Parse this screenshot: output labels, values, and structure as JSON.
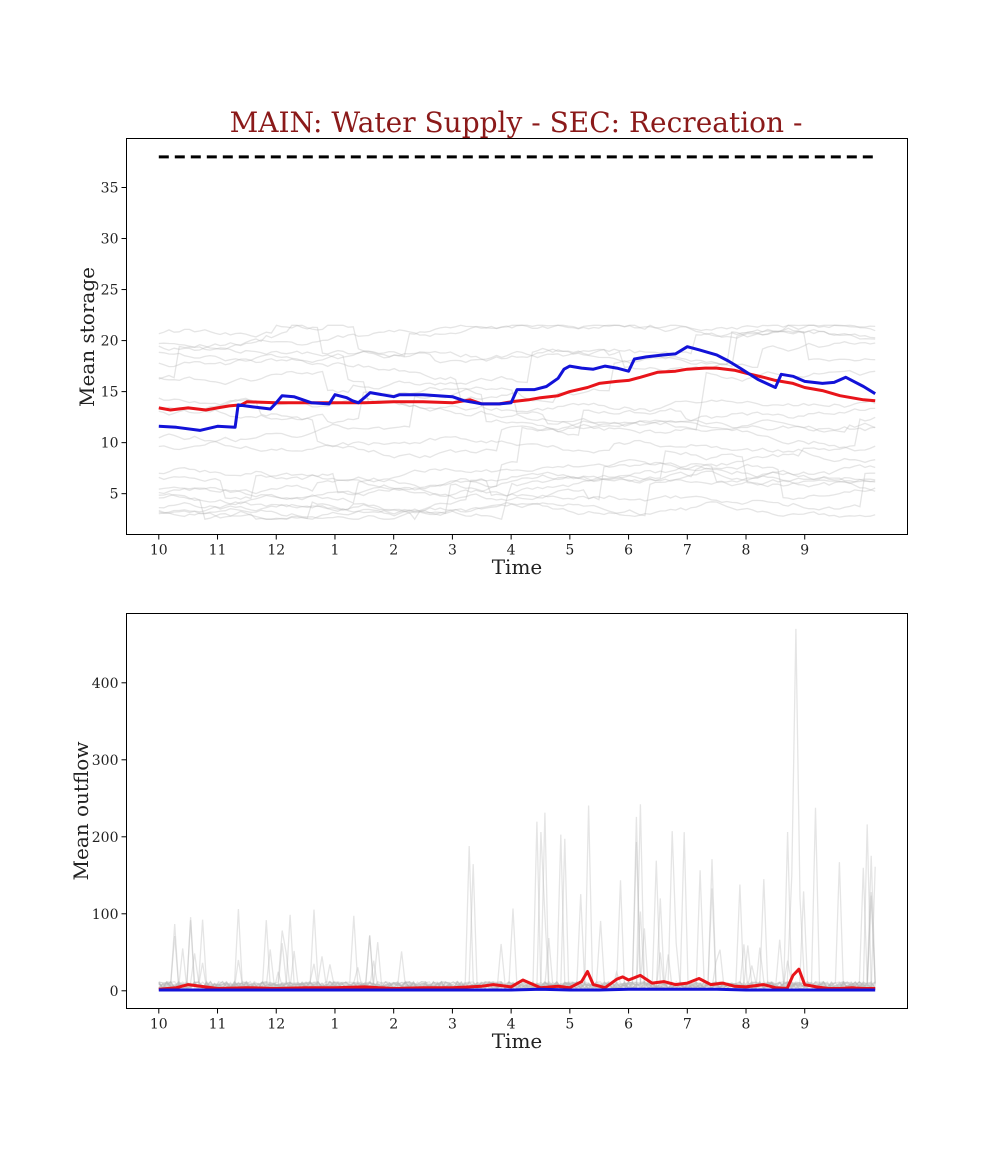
{
  "title": "MAIN: Water Supply - SEC: Recreation -",
  "colors": {
    "title": "#8b1a1a",
    "red_series": "#e8141a",
    "blue_series": "#1212d8",
    "gray_traces": "#b4b4b4",
    "reference": "#000000"
  },
  "chart_data": [
    {
      "type": "line",
      "xlabel": "Time",
      "ylabel": "Mean storage",
      "x_tick_labels": [
        "10",
        "11",
        "12",
        "1",
        "2",
        "3",
        "4",
        "5",
        "6",
        "7",
        "8",
        "9"
      ],
      "x_tick_positions": [
        0,
        1,
        2,
        3,
        4,
        5,
        6,
        7,
        8,
        9,
        10,
        11
      ],
      "xlim": [
        -0.55,
        12.75
      ],
      "y_ticks": [
        5,
        10,
        15,
        20,
        25,
        30,
        35
      ],
      "ylim": [
        1,
        39.8
      ],
      "grid": false,
      "reference_line": {
        "y": 38,
        "x_range": [
          0,
          12.2
        ],
        "style": "dashed"
      },
      "series": [
        {
          "role": "highlight",
          "color": "red",
          "x": [
            0,
            0.2,
            0.5,
            0.8,
            1.0,
            1.2,
            1.4,
            1.5,
            2.0,
            2.5,
            3.0,
            3.5,
            4.0,
            4.5,
            5.0,
            5.3,
            5.5,
            5.8,
            6.0,
            6.3,
            6.5,
            6.8,
            7.0,
            7.3,
            7.5,
            7.8,
            8.0,
            8.2,
            8.5,
            8.8,
            9.0,
            9.3,
            9.5,
            9.8,
            10.0,
            10.3,
            10.5,
            10.8,
            11.0,
            11.3,
            11.6,
            12.0,
            12.2
          ],
          "y": [
            13.4,
            13.2,
            13.4,
            13.2,
            13.4,
            13.6,
            13.7,
            14.0,
            13.9,
            13.9,
            13.9,
            13.9,
            14.0,
            14.0,
            13.9,
            14.2,
            13.8,
            13.8,
            14.0,
            14.2,
            14.4,
            14.6,
            15.0,
            15.4,
            15.8,
            16.0,
            16.1,
            16.4,
            16.9,
            17.0,
            17.2,
            17.3,
            17.3,
            17.1,
            16.8,
            16.4,
            16.1,
            15.8,
            15.4,
            15.1,
            14.6,
            14.2,
            14.1
          ]
        },
        {
          "role": "highlight",
          "color": "blue",
          "x": [
            0,
            0.3,
            0.7,
            1.0,
            1.3,
            1.35,
            1.6,
            1.9,
            2.0,
            2.1,
            2.3,
            2.6,
            2.9,
            3.0,
            3.2,
            3.3,
            3.4,
            3.6,
            3.9,
            4.0,
            4.1,
            4.5,
            5.0,
            5.2,
            5.4,
            5.5,
            5.8,
            6.0,
            6.1,
            6.4,
            6.6,
            6.8,
            6.9,
            7.0,
            7.2,
            7.4,
            7.6,
            7.8,
            8.0,
            8.1,
            8.3,
            8.6,
            8.8,
            9.0,
            9.2,
            9.5,
            9.7,
            9.9,
            10.2,
            10.5,
            10.6,
            10.8,
            11.0,
            11.3,
            11.5,
            11.7,
            12.0,
            12.2
          ],
          "y": [
            11.6,
            11.5,
            11.2,
            11.6,
            11.5,
            13.7,
            13.5,
            13.3,
            13.9,
            14.6,
            14.5,
            13.9,
            13.8,
            14.7,
            14.4,
            14.1,
            13.9,
            14.9,
            14.6,
            14.5,
            14.7,
            14.7,
            14.5,
            14.1,
            13.9,
            13.8,
            13.8,
            13.9,
            15.2,
            15.2,
            15.5,
            16.3,
            17.2,
            17.5,
            17.3,
            17.2,
            17.5,
            17.3,
            17.0,
            18.2,
            18.4,
            18.6,
            18.7,
            19.4,
            19.1,
            18.6,
            18.0,
            17.3,
            16.2,
            15.4,
            16.7,
            16.5,
            16.0,
            15.8,
            15.9,
            16.4,
            15.5,
            14.8
          ]
        }
      ]
    },
    {
      "type": "line",
      "xlabel": "Time",
      "ylabel": "Mean outflow",
      "x_tick_labels": [
        "10",
        "11",
        "12",
        "1",
        "2",
        "3",
        "4",
        "5",
        "6",
        "7",
        "8",
        "9"
      ],
      "x_tick_positions": [
        0,
        1,
        2,
        3,
        4,
        5,
        6,
        7,
        8,
        9,
        10,
        11
      ],
      "xlim": [
        -0.55,
        12.75
      ],
      "y_ticks": [
        0,
        100,
        200,
        300,
        400
      ],
      "ylim": [
        -23,
        490
      ],
      "grid": false,
      "series": [
        {
          "role": "highlight",
          "color": "red",
          "x": [
            0,
            0.3,
            0.5,
            1.0,
            1.5,
            2.0,
            2.5,
            3.0,
            3.5,
            4.0,
            4.5,
            5.0,
            5.5,
            5.7,
            6.0,
            6.2,
            6.5,
            6.8,
            7.0,
            7.2,
            7.3,
            7.4,
            7.6,
            7.8,
            7.9,
            8.0,
            8.2,
            8.4,
            8.6,
            8.8,
            9.0,
            9.2,
            9.4,
            9.6,
            9.8,
            10.0,
            10.3,
            10.5,
            10.7,
            10.8,
            10.9,
            11.0,
            11.2,
            11.4,
            11.6,
            11.8,
            12.0,
            12.2
          ],
          "y": [
            2,
            4,
            8,
            3,
            4,
            3,
            4,
            4,
            5,
            3,
            4,
            4,
            6,
            8,
            5,
            14,
            4,
            6,
            4,
            12,
            25,
            8,
            4,
            15,
            18,
            14,
            20,
            10,
            12,
            8,
            10,
            16,
            8,
            10,
            6,
            5,
            8,
            4,
            3,
            20,
            28,
            8,
            5,
            3,
            3,
            4,
            3,
            3
          ]
        },
        {
          "role": "highlight",
          "color": "blue",
          "x": [
            0,
            1,
            2,
            3,
            4,
            5,
            6,
            6.5,
            7,
            7.5,
            8,
            8.5,
            9,
            9.5,
            10,
            10.5,
            11,
            11.5,
            12.2
          ],
          "y": [
            1,
            1,
            1,
            1,
            1,
            1,
            1,
            2,
            1,
            1,
            2,
            2,
            2,
            2,
            1,
            1,
            1,
            1,
            1
          ]
        }
      ]
    }
  ]
}
